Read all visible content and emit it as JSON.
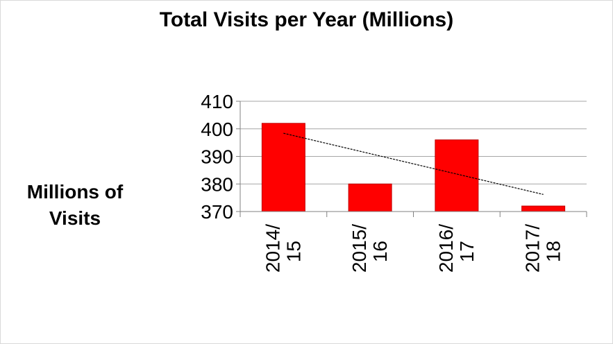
{
  "chart_data": {
    "type": "bar",
    "title": "Total Visits per Year (Millions)",
    "ylabel_lines": [
      "Millions of",
      "Visits"
    ],
    "categories": [
      {
        "line1": "2014/",
        "line2": "15"
      },
      {
        "line1": "2015/",
        "line2": "16"
      },
      {
        "line1": "2016/",
        "line2": "17"
      },
      {
        "line1": "2017/",
        "line2": "18"
      }
    ],
    "values": [
      402,
      380,
      396,
      372
    ],
    "ylim": [
      370,
      410
    ],
    "yticks": [
      "370",
      "380",
      "390",
      "400",
      "410"
    ],
    "trendline": {
      "type": "linear",
      "start": 398.4,
      "end": 376.2
    },
    "grid": true,
    "legend": "none",
    "colors": {
      "bar": "#ff0000",
      "bar_edge": "#c00000",
      "grid": "#a6a6a6",
      "axis": "#808080",
      "trendline": "#000000"
    }
  }
}
